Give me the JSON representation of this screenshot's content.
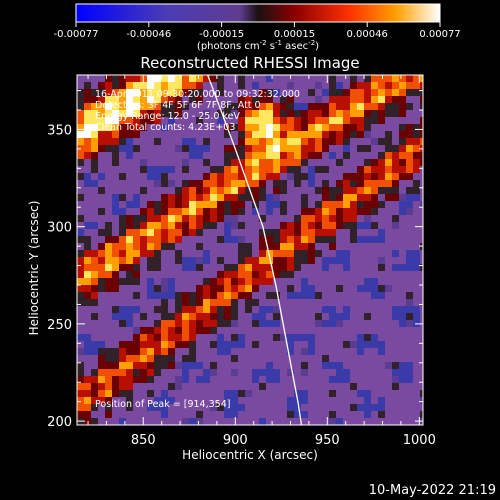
{
  "colorbar": {
    "ticks": [
      "-0.00077",
      "-0.00046",
      "-0.00015",
      "0.00015",
      "0.00046",
      "0.00077"
    ],
    "unit_main": "(photons cm",
    "unit_sup1": "-2",
    "unit_mid": " s",
    "unit_sup2": "-1",
    "unit_end": " asec",
    "unit_sup3": "-2",
    "unit_close": ")"
  },
  "chart_data": {
    "type": "heatmap",
    "title": "Reconstructed RHESSI Image",
    "xlabel": "Heliocentric X (arcsec)",
    "ylabel": "Heliocentric Y (arcsec)",
    "xlim": [
      814,
      1002
    ],
    "ylim": [
      198,
      378
    ],
    "x_ticks": [
      850,
      900,
      950,
      1000
    ],
    "y_ticks": [
      200,
      250,
      300,
      350
    ],
    "clim": [
      -0.00077,
      0.00077
    ],
    "colormap": [
      "#0000ff",
      "#3a3aa8",
      "#5a3c92",
      "#7a4aa0",
      "#302228",
      "#6a0000",
      "#b81000",
      "#f05000",
      "#ffa000",
      "#ffe860",
      "#ffffff"
    ],
    "annotations": [
      "16-Apr-2011 09:30:20.000 to 09:32:32.000",
      "Detectors: 3F 4F 5F 6F 7F 8F, Att 0",
      "Energy Range: 12.0 - 25.0 keV",
      "Clean    Total counts: 4.23E+03",
      "Position of Peak = [914,354]"
    ],
    "peak": {
      "x": 914,
      "y": 354
    },
    "limb": [
      [
        885,
        378
      ],
      [
        900,
        340
      ],
      [
        915,
        300
      ],
      [
        922,
        270
      ],
      [
        928,
        240
      ],
      [
        934,
        210
      ],
      [
        936,
        198
      ]
    ]
  },
  "timestamp": "10-May-2022 21:19"
}
